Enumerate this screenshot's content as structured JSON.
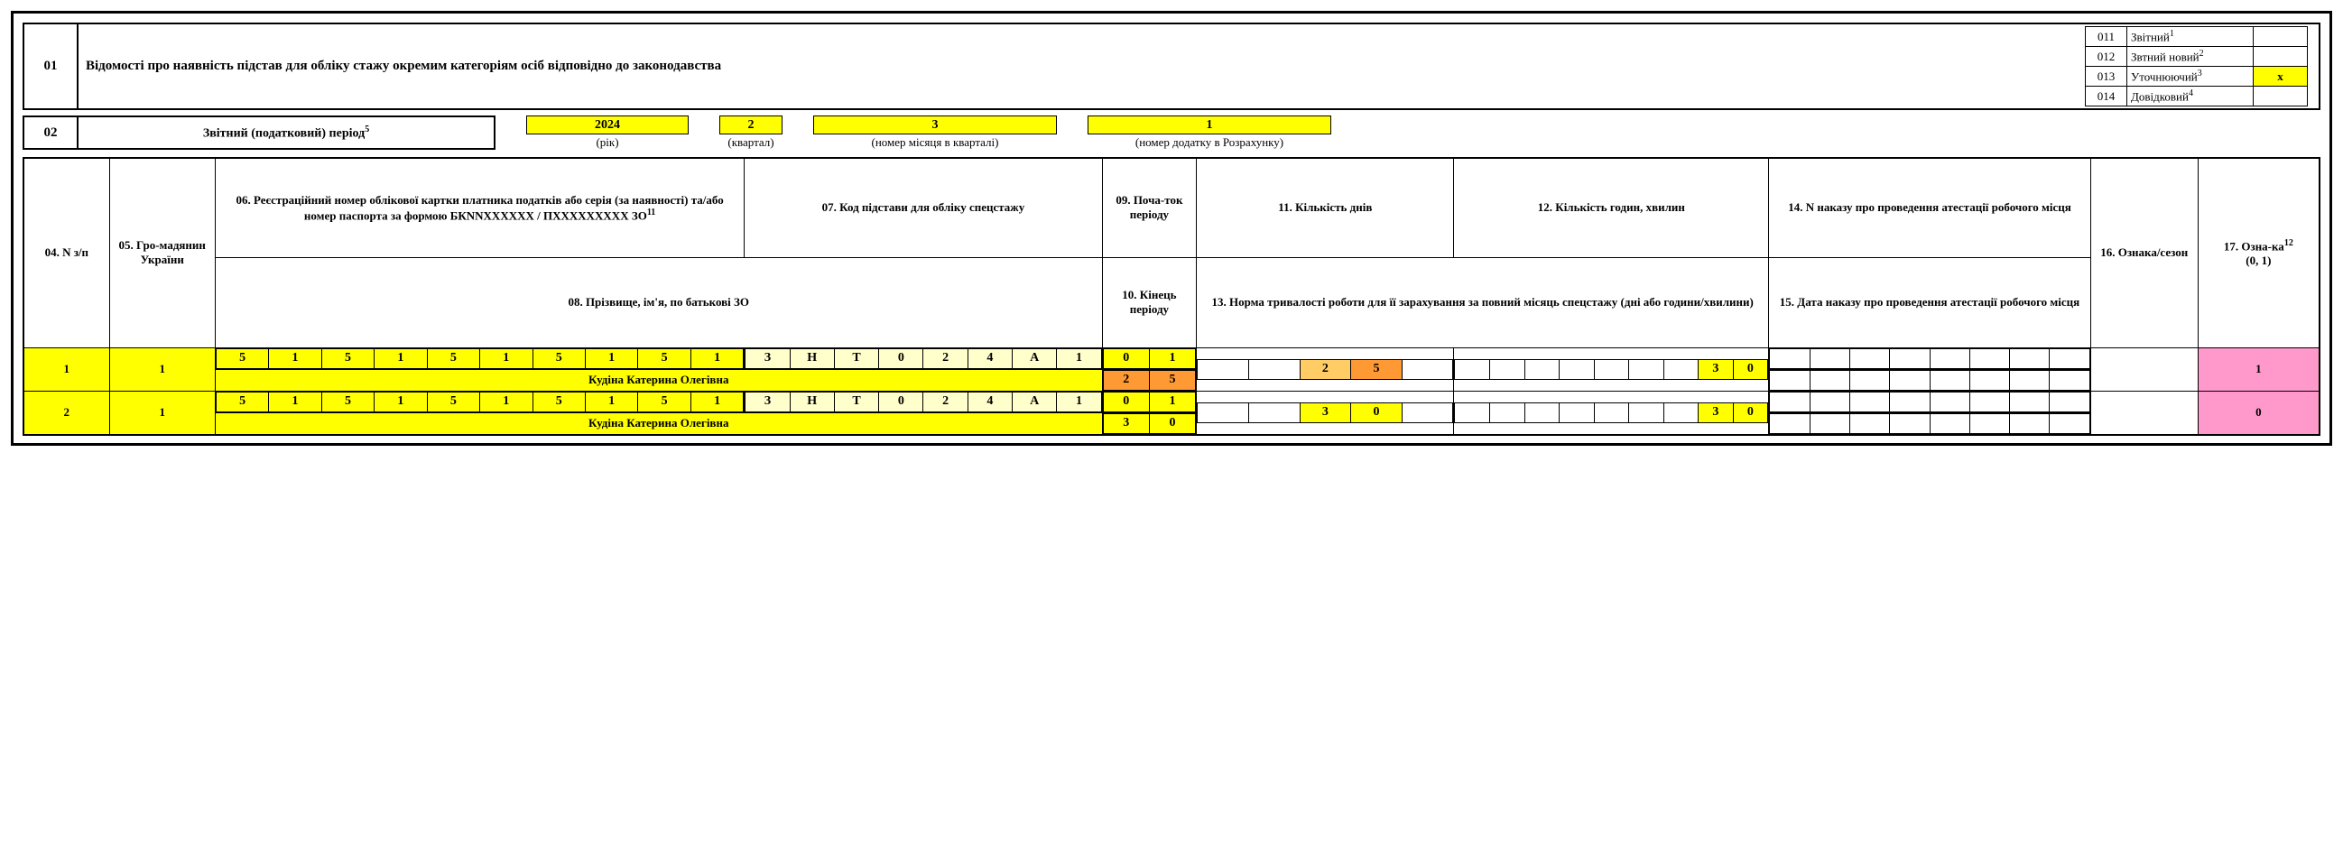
{
  "colors": {
    "yellow": "#ffff00",
    "orange_light": "#ffcc66",
    "orange_dark": "#ff9933",
    "pale_yellow": "#ffffcc",
    "pink": "#ff99cc",
    "white": "#ffffff",
    "black": "#000000"
  },
  "sec01": {
    "num": "01",
    "title": "Відомості про наявність підстав для обліку стажу окремим категоріям осіб відповідно до законодавства",
    "types": [
      {
        "code": "011",
        "label": "Звітний",
        "sup": "1",
        "mark": "",
        "mark_bg": "white"
      },
      {
        "code": "012",
        "label": "Звтний новий",
        "sup": "2",
        "mark": "",
        "mark_bg": "white"
      },
      {
        "code": "013",
        "label": "Уточнюючий",
        "sup": "3",
        "mark": "x",
        "mark_bg": "yellow"
      },
      {
        "code": "014",
        "label": "Довідковий",
        "sup": "4",
        "mark": "",
        "mark_bg": "white"
      }
    ]
  },
  "sec02": {
    "num": "02",
    "label": "Звітний (податковий) період",
    "label_sup": "5",
    "year": {
      "value": "2024",
      "sub": "(рік)"
    },
    "quarter": {
      "value": "2",
      "sub": "(квартал)"
    },
    "month": {
      "value": "3",
      "sub": "(номер місяця в кварталі)"
    },
    "appendix": {
      "value": "1",
      "sub": "(номер додатку в Розрахунку)"
    }
  },
  "headers": {
    "c04": "04. N з/п",
    "c05": "05. Гро-мадянин України",
    "c06": "06. Реєстраційний номер облікової картки платника податків або серія (за наявності)  та/або номер паспорта за формою БКNNXXXXXX / ПХХХХХХХХХ ЗО",
    "c06_sup": "11",
    "c07": "07. Код підстави для обліку спецстажу",
    "c08": "08. Прізвище, ім'я, по батькові ЗО",
    "c09": "09. Поча-ток періоду",
    "c10": "10. Кінець періоду",
    "c11": "11. Кількість днів",
    "c12": "12. Кількість годин, хвилин",
    "c13": "13. Норма тривалості роботи для її зарахування за повний місяць спецстажу (дні або години/хвилини)",
    "c14": "14. N наказу про проведення атестації робочого місця",
    "c15": "15. Дата наказу про проведення атестації робочого місця",
    "c16": "16. Ознака/сезон",
    "c17": "17. Озна-ка",
    "c17_sup": "12",
    "c17_extra": "(0, 1)"
  },
  "rows": [
    {
      "num": "1",
      "citizen": "1",
      "rn": [
        "5",
        "1",
        "5",
        "1",
        "5",
        "1",
        "5",
        "1",
        "5",
        "1"
      ],
      "code": [
        "З",
        "Н",
        "Т",
        "0",
        "2",
        "4",
        "А",
        "1"
      ],
      "name": "Кудіна Катерина Олегівна",
      "start": [
        "0",
        "1"
      ],
      "end": [
        "2",
        "5"
      ],
      "end_bg": "orange_dark",
      "days": [
        "",
        "",
        "2",
        "5",
        ""
      ],
      "days_bg_idx": [
        2,
        3
      ],
      "hours": [
        "",
        "",
        "",
        "",
        "",
        "",
        ""
      ],
      "norm": [
        "",
        "",
        "",
        "",
        "",
        "",
        "",
        "3",
        "0"
      ],
      "col14": [
        "",
        "",
        "",
        "",
        "",
        "",
        "",
        ""
      ],
      "col15": [
        "",
        "",
        "",
        "",
        "",
        "",
        "",
        ""
      ],
      "season": "",
      "ozn": "1"
    },
    {
      "num": "2",
      "citizen": "1",
      "rn": [
        "5",
        "1",
        "5",
        "1",
        "5",
        "1",
        "5",
        "1",
        "5",
        "1"
      ],
      "code": [
        "З",
        "Н",
        "Т",
        "0",
        "2",
        "4",
        "А",
        "1"
      ],
      "name": "Кудіна Катерина Олегівна",
      "start": [
        "0",
        "1"
      ],
      "end": [
        "3",
        "0"
      ],
      "end_bg": "yellow",
      "days": [
        "",
        "",
        "3",
        "0",
        ""
      ],
      "days_bg_idx": [],
      "hours": [
        "",
        "",
        "",
        "",
        "",
        "",
        ""
      ],
      "norm": [
        "",
        "",
        "",
        "",
        "",
        "",
        "",
        "3",
        "0"
      ],
      "col14": [
        "",
        "",
        "",
        "",
        "",
        "",
        "",
        ""
      ],
      "col15": [
        "",
        "",
        "",
        "",
        "",
        "",
        "",
        ""
      ],
      "season": "",
      "ozn": "0"
    }
  ]
}
